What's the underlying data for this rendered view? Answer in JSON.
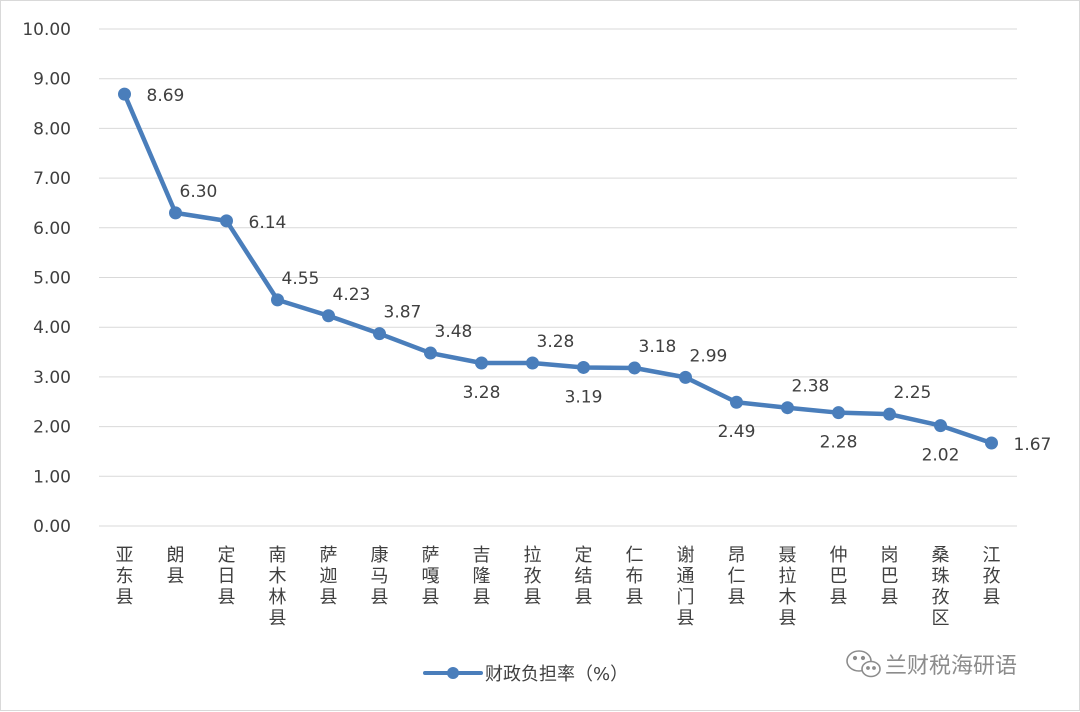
{
  "chart_data": {
    "type": "line",
    "title": "",
    "xlabel": "",
    "ylabel": "",
    "ylim": [
      0,
      10
    ],
    "y_ticks": [
      "0.00",
      "1.00",
      "2.00",
      "3.00",
      "4.00",
      "5.00",
      "6.00",
      "7.00",
      "8.00",
      "9.00",
      "10.00"
    ],
    "grid": "horizontal",
    "legend_position": "bottom",
    "categories": [
      "亚东县",
      "朗县",
      "定日县",
      "南木林县",
      "萨迦县",
      "康马县",
      "萨嘎县",
      "吉隆县",
      "拉孜县",
      "定结县",
      "仁布县",
      "谢通门县",
      "昂仁县",
      "聂拉木县",
      "仲巴县",
      "岗巴县",
      "桑珠孜区",
      "江孜县"
    ],
    "series": [
      {
        "name": "财政负担率（%）",
        "color": "#4a7ebb",
        "values": [
          8.69,
          6.3,
          6.14,
          4.55,
          4.23,
          3.87,
          3.48,
          3.28,
          3.28,
          3.19,
          3.18,
          2.99,
          2.49,
          2.38,
          2.28,
          2.25,
          2.02,
          1.67
        ],
        "labels": [
          "8.69",
          "6.30",
          "6.14",
          "4.55",
          "4.23",
          "3.87",
          "3.48",
          "3.28",
          "3.28",
          "3.19",
          "3.18",
          "2.99",
          "2.49",
          "2.38",
          "2.28",
          "2.25",
          "2.02",
          "1.67"
        ]
      }
    ]
  },
  "watermark": {
    "text": "兰财税海研语",
    "icon": "wechat-icon"
  }
}
